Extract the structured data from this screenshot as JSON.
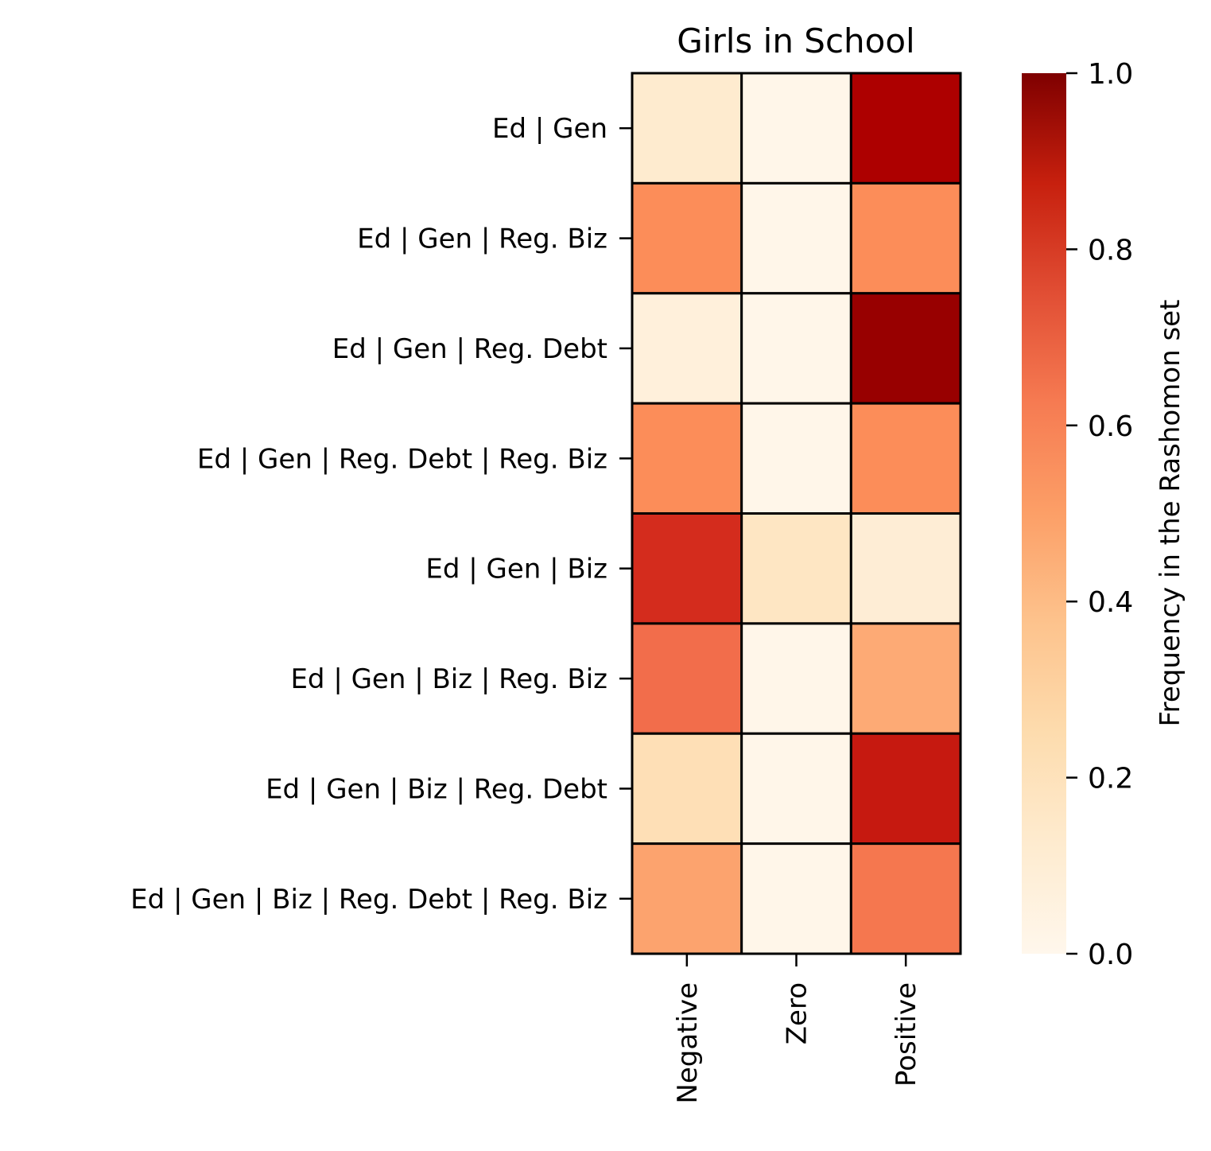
{
  "chart_data": {
    "type": "heatmap",
    "title": "Girls in School",
    "x_categories": [
      "Negative",
      "Zero",
      "Positive"
    ],
    "y_categories": [
      "Ed | Gen",
      "Ed | Gen | Reg. Biz",
      "Ed | Gen | Reg. Debt",
      "Ed | Gen | Reg. Debt | Reg. Biz",
      "Ed | Gen | Biz",
      "Ed | Gen | Biz | Reg. Biz",
      "Ed | Gen | Biz | Reg. Debt",
      "Ed | Gen | Biz | Reg. Debt | Reg. Biz"
    ],
    "values": [
      [
        0.1,
        0.01,
        0.89
      ],
      [
        0.5,
        0.01,
        0.5
      ],
      [
        0.06,
        0.01,
        0.94
      ],
      [
        0.5,
        0.01,
        0.5
      ],
      [
        0.76,
        0.14,
        0.08
      ],
      [
        0.6,
        0.01,
        0.42
      ],
      [
        0.18,
        0.01,
        0.81
      ],
      [
        0.44,
        0.01,
        0.57
      ]
    ],
    "colorbar": {
      "label": "Frequency in the Rashomon set",
      "range": [
        0,
        1
      ],
      "ticks": [
        "0.0",
        "0.2",
        "0.4",
        "0.6",
        "0.8",
        "1.0"
      ],
      "colormap": "OrRd"
    }
  }
}
